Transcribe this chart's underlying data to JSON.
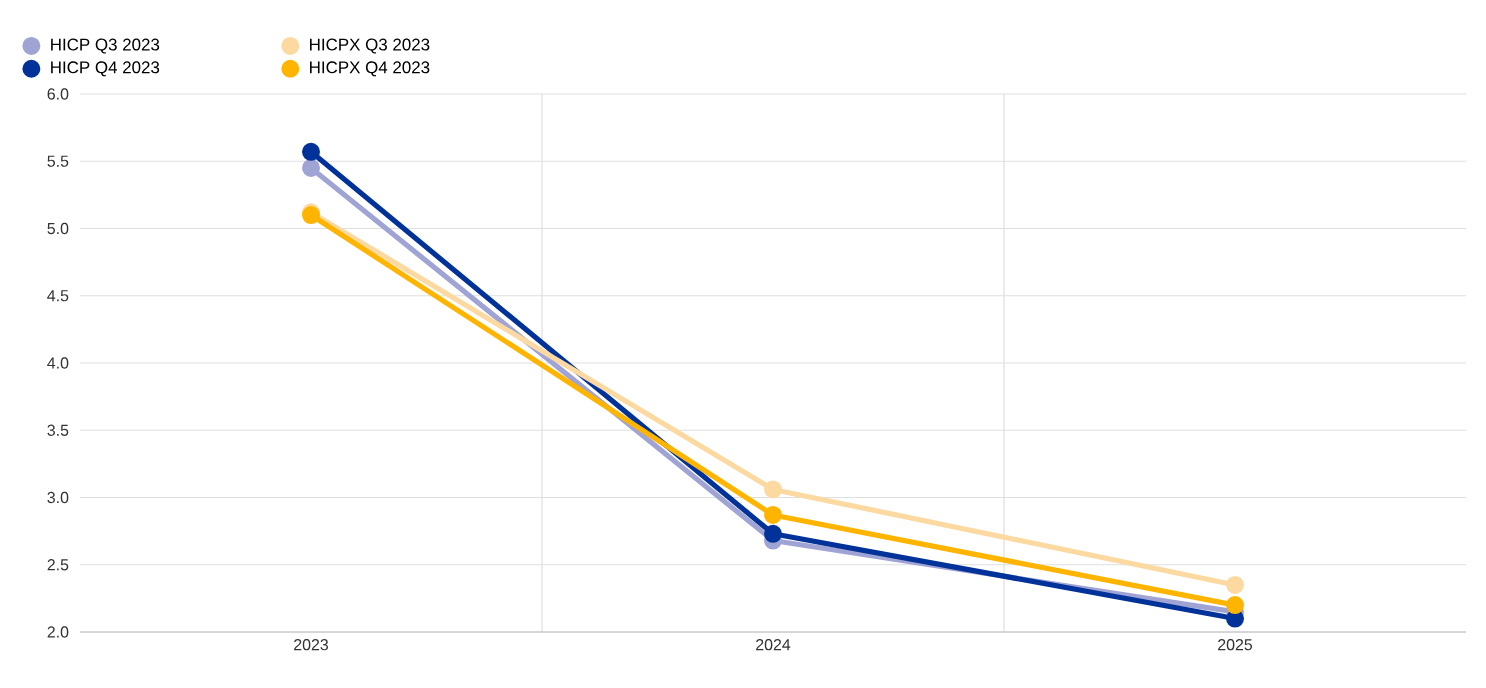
{
  "chart_data": {
    "type": "line",
    "categories": [
      "2023",
      "2024",
      "2025"
    ],
    "series": [
      {
        "name": "HICP Q3 2023",
        "color": "#9fa4d4",
        "values": [
          5.45,
          2.68,
          2.15
        ]
      },
      {
        "name": "HICP Q4 2023",
        "color": "#003299",
        "values": [
          5.57,
          2.73,
          2.1
        ]
      },
      {
        "name": "HICPX Q3 2023",
        "color": "#fcd9a0",
        "values": [
          5.12,
          3.06,
          2.35
        ]
      },
      {
        "name": "HICPX Q4 2023",
        "color": "#ffb400",
        "values": [
          5.1,
          2.87,
          2.2
        ]
      }
    ],
    "ylim": [
      2.0,
      6.0
    ],
    "yticks": [
      {
        "value": 2.0,
        "label": "2.0"
      },
      {
        "value": 2.5,
        "label": "2.5"
      },
      {
        "value": 3.0,
        "label": "3.0"
      },
      {
        "value": 3.5,
        "label": "3.5"
      },
      {
        "value": 4.0,
        "label": "4.0"
      },
      {
        "value": 4.5,
        "label": "4.5"
      },
      {
        "value": 5.0,
        "label": "5.0"
      },
      {
        "value": 5.5,
        "label": "5.5"
      },
      {
        "value": 6.0,
        "label": "6.0"
      }
    ],
    "grid": true,
    "legend": "top left",
    "marker": "circle",
    "line_style": "solid"
  }
}
